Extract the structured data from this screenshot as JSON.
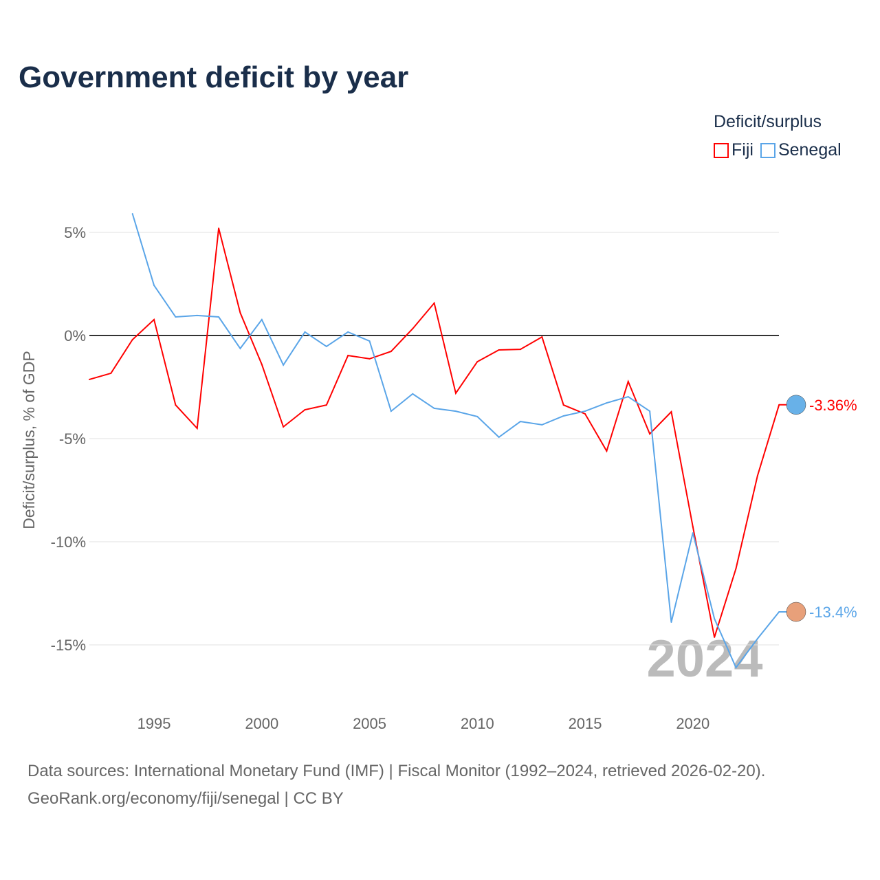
{
  "title": "Government deficit by year",
  "legend": {
    "title": "Deficit/surplus",
    "items": [
      "Fiji",
      "Senegal"
    ]
  },
  "footer": {
    "line1": "Data sources: International Monetary Fund (IMF) | Fiscal Monitor (1992–2024, retrieved 2026-02-20).",
    "line2": "GeoRank.org/economy/fiji/senegal | CC BY"
  },
  "chart_data": {
    "type": "line",
    "title": "Government deficit by year",
    "xlabel": "",
    "ylabel": "Deficit/surplus, % of GDP",
    "xlim": [
      1992,
      2024
    ],
    "ylim": [
      -17,
      6.5
    ],
    "x_ticks": [
      1995,
      2000,
      2005,
      2010,
      2015,
      2020
    ],
    "x_tick_labels": [
      "1995",
      "2000",
      "2005",
      "2010",
      "2015",
      "2020"
    ],
    "y_ticks": [
      5,
      0,
      -5,
      -10,
      -15
    ],
    "y_tick_labels": [
      "5%",
      "0%",
      "-5%",
      "-10%",
      "-15%"
    ],
    "year_watermark": "2024",
    "series": [
      {
        "name": "Fiji",
        "color": "#ff0000",
        "end_label": "-3.36%",
        "x": [
          1992,
          1993,
          1994,
          1995,
          1996,
          1997,
          1998,
          1999,
          2000,
          2001,
          2002,
          2003,
          2004,
          2005,
          2006,
          2007,
          2008,
          2009,
          2010,
          2011,
          2012,
          2013,
          2014,
          2015,
          2016,
          2017,
          2018,
          2019,
          2020,
          2021,
          2022,
          2023,
          2024
        ],
        "values": [
          -2.13,
          -1.83,
          -0.2,
          0.77,
          -3.37,
          -4.5,
          5.2,
          1.1,
          -1.4,
          -4.43,
          -3.6,
          -3.37,
          -0.97,
          -1.13,
          -0.77,
          0.33,
          1.57,
          -2.8,
          -1.27,
          -0.7,
          -0.67,
          -0.07,
          -3.37,
          -3.8,
          -5.6,
          -2.23,
          -4.77,
          -3.7,
          -9.27,
          -14.63,
          -11.3,
          -6.8,
          -3.36
        ]
      },
      {
        "name": "Senegal",
        "color": "#5aa5e8",
        "end_label": "-13.4%",
        "x": [
          1994,
          1995,
          1996,
          1997,
          1998,
          1999,
          2000,
          2001,
          2002,
          2003,
          2004,
          2005,
          2006,
          2007,
          2008,
          2009,
          2010,
          2011,
          2012,
          2013,
          2014,
          2015,
          2016,
          2017,
          2018,
          2019,
          2020,
          2021,
          2022,
          2023,
          2024
        ],
        "values": [
          5.9,
          2.43,
          0.9,
          0.97,
          0.9,
          -0.63,
          0.77,
          -1.43,
          0.17,
          -0.53,
          0.17,
          -0.27,
          -3.67,
          -2.83,
          -3.53,
          -3.67,
          -3.93,
          -4.93,
          -4.17,
          -4.33,
          -3.9,
          -3.67,
          -3.27,
          -2.97,
          -3.67,
          -13.9,
          -9.57,
          -13.73,
          -16.1,
          -14.7,
          -13.4
        ]
      }
    ]
  }
}
